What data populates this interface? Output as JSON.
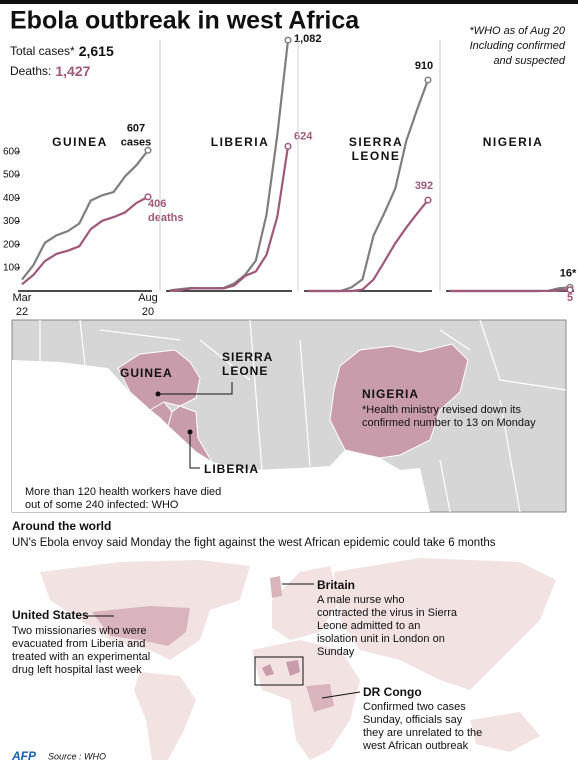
{
  "title": "Ebola outbreak in west Africa",
  "note": [
    "*WHO as of Aug 20",
    "Including confirmed",
    "and suspected"
  ],
  "total_cases_label": "Total cases*",
  "total_cases": "2,615",
  "deaths_label": "Deaths:",
  "deaths": "1,427",
  "chart_data": [
    {
      "type": "line",
      "title": "GUINEA",
      "categories": [
        "Mar 22",
        null,
        null,
        null,
        null,
        null,
        null,
        null,
        null,
        null,
        null,
        "Aug 20"
      ],
      "ylim": [
        0,
        1100
      ],
      "yticks": [
        100,
        200,
        300,
        400,
        500,
        600
      ],
      "series": [
        {
          "color": "#7f7f7f",
          "values": [
            49,
            112,
            208,
            240,
            258,
            291,
            390,
            413,
            427,
            495,
            543,
            607
          ],
          "value_labels": [
            null,
            null,
            null,
            null,
            null,
            null,
            null,
            null,
            null,
            null,
            null,
            "607 cases"
          ]
        },
        {
          "color": "#a0587a",
          "values": [
            29,
            70,
            129,
            160,
            174,
            193,
            267,
            303,
            319,
            339,
            380,
            406
          ],
          "value_labels": [
            null,
            null,
            null,
            null,
            null,
            null,
            null,
            null,
            null,
            null,
            null,
            "406 deaths"
          ]
        }
      ]
    },
    {
      "type": "line",
      "title": "LIBERIA",
      "ylim": [
        0,
        1100
      ],
      "series": [
        {
          "color": "#7f7f7f",
          "values": [
            3,
            8,
            13,
            12,
            12,
            13,
            33,
            70,
            131,
            329,
            672,
            1082
          ],
          "value_labels": [
            null,
            null,
            null,
            null,
            null,
            null,
            null,
            null,
            null,
            null,
            null,
            "1,082"
          ]
        },
        {
          "color": "#a0587a",
          "values": [
            2,
            4,
            11,
            11,
            11,
            11,
            24,
            65,
            84,
            156,
            320,
            624
          ],
          "value_labels": [
            null,
            null,
            null,
            null,
            null,
            null,
            null,
            null,
            null,
            null,
            null,
            "624"
          ]
        }
      ]
    },
    {
      "type": "line",
      "title": "SIERRA LEONE",
      "ylim": [
        0,
        1100
      ],
      "series": [
        {
          "color": "#7f7f7f",
          "values": [
            0,
            0,
            0,
            0,
            16,
            50,
            239,
            337,
            442,
            646,
            783,
            910
          ],
          "value_labels": [
            null,
            null,
            null,
            null,
            null,
            null,
            null,
            null,
            null,
            null,
            null,
            "910"
          ]
        },
        {
          "color": "#a0587a",
          "values": [
            0,
            0,
            0,
            0,
            0,
            6,
            49,
            127,
            206,
            273,
            334,
            392
          ],
          "value_labels": [
            null,
            null,
            null,
            null,
            null,
            null,
            null,
            null,
            null,
            null,
            null,
            "392"
          ]
        }
      ]
    },
    {
      "type": "line",
      "title": "NIGERIA",
      "ylim": [
        0,
        1100
      ],
      "series": [
        {
          "color": "#7f7f7f",
          "values": [
            0,
            0,
            0,
            0,
            0,
            0,
            0,
            0,
            0,
            1,
            12,
            16
          ],
          "value_labels": [
            null,
            null,
            null,
            null,
            null,
            null,
            null,
            null,
            null,
            null,
            null,
            "16*"
          ]
        },
        {
          "color": "#a0587a",
          "values": [
            0,
            0,
            0,
            0,
            0,
            0,
            0,
            0,
            0,
            1,
            4,
            5
          ],
          "value_labels": [
            null,
            null,
            null,
            null,
            null,
            null,
            null,
            null,
            null,
            null,
            null,
            "5"
          ]
        }
      ]
    }
  ],
  "map": {
    "labels": [
      "GUINEA",
      "SIERRA LEONE",
      "LIBERIA",
      "NIGERIA"
    ],
    "nigeria_note": "*Health ministry revised down its confirmed number to 13 on Monday",
    "health_workers": "More than 120 health workers have died out of some 240 infected: WHO"
  },
  "world": {
    "heading": "Around the world",
    "intro": "UN's Ebola envoy said Monday the fight against the west African epidemic could take 6 months",
    "callouts": [
      {
        "title": "Britain",
        "text": "A male nurse who contracted the virus in Sierra Leone admitted to an isolation unit in London on Sunday"
      },
      {
        "title": "United States",
        "text": "Two missionaries who were evacuated from Liberia and treated with an experimental drug left hospital last week"
      },
      {
        "title": "DR Congo",
        "text": "Confirmed two cases Sunday, officials say they are unrelated to the west African outbreak"
      }
    ]
  },
  "footer": {
    "agency": "AFP",
    "source": "Source : WHO"
  }
}
